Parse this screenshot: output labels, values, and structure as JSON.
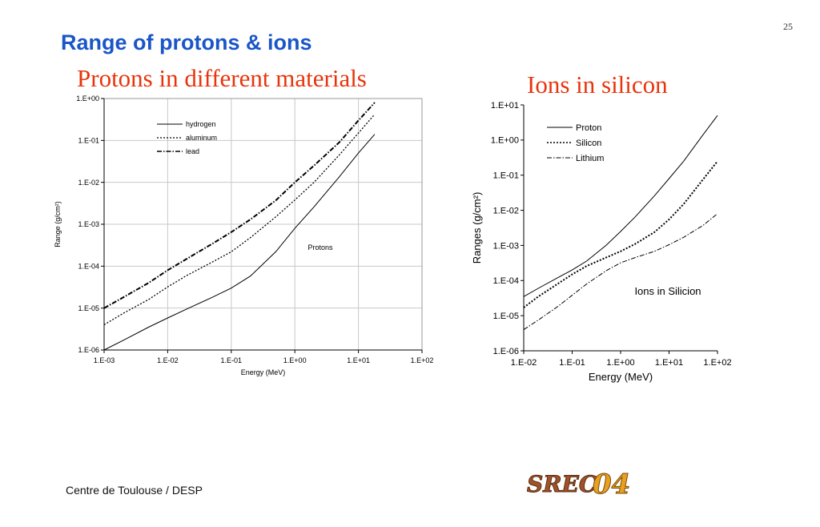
{
  "page_number": "25",
  "slide_title": "Range of protons & ions",
  "footer": "Centre de Toulouse / DESP",
  "logo_text": "SREC04",
  "colors": {
    "title": "#1a56c8",
    "heading": "#e8340c",
    "grid": "#c8c8c8",
    "line": "#000000"
  },
  "chart_data": [
    {
      "type": "line",
      "title": "Protons in different materials",
      "xlabel": "Energy (MeV)",
      "ylabel": "Range (g/cm²)",
      "xscale": "log",
      "yscale": "log",
      "xlim": [
        0.001,
        100
      ],
      "ylim": [
        1e-06,
        1
      ],
      "x_ticks": [
        "1.E-03",
        "1.E-02",
        "1.E-01",
        "1.E+00",
        "1.E+01",
        "1.E+02"
      ],
      "y_ticks": [
        "1.E-06",
        "1.E-05",
        "1.E-04",
        "1.E-03",
        "1.E-02",
        "1.E-01",
        "1.E+00"
      ],
      "grid": "vertical",
      "legend_position": "top-left",
      "annotation": "Protons",
      "series": [
        {
          "name": "hydrogen",
          "dash": "solid",
          "width": 1,
          "x": [
            0.001,
            0.002,
            0.005,
            0.01,
            0.02,
            0.05,
            0.1,
            0.2,
            0.5,
            1,
            2,
            5,
            10,
            18
          ],
          "y": [
            1e-06,
            1.7e-06,
            3.5e-06,
            5.8e-06,
            9.5e-06,
            1.8e-05,
            3e-05,
            5.8e-05,
            0.00022,
            0.0008,
            0.0026,
            0.0135,
            0.05,
            0.14
          ]
        },
        {
          "name": "aluminum",
          "dash": "dotted",
          "width": 1.3,
          "x": [
            0.001,
            0.002,
            0.005,
            0.01,
            0.02,
            0.05,
            0.1,
            0.2,
            0.5,
            1,
            2,
            5,
            10,
            18
          ],
          "y": [
            4e-06,
            7.5e-06,
            1.6e-05,
            3.2e-05,
            6e-05,
            0.000125,
            0.00022,
            0.00048,
            0.0015,
            0.0038,
            0.01,
            0.045,
            0.15,
            0.42
          ]
        },
        {
          "name": "lead",
          "dash": "dashdot",
          "width": 2,
          "x": [
            0.001,
            0.002,
            0.005,
            0.01,
            0.02,
            0.05,
            0.1,
            0.2,
            0.5,
            1,
            2,
            5,
            10,
            18
          ],
          "y": [
            1e-05,
            1.8e-05,
            4e-05,
            8e-05,
            0.00015,
            0.00034,
            0.00065,
            0.0013,
            0.0037,
            0.01,
            0.025,
            0.09,
            0.3,
            0.8
          ]
        }
      ]
    },
    {
      "type": "line",
      "title": "Ions in silicon",
      "xlabel": "Energy (MeV)",
      "ylabel": "Ranges (g/cm²)",
      "xscale": "log",
      "yscale": "log",
      "xlim": [
        0.01,
        100
      ],
      "ylim": [
        1e-06,
        10
      ],
      "x_ticks": [
        "1.E-02",
        "1.E-01",
        "1.E+00",
        "1.E+01",
        "1.E+02"
      ],
      "y_ticks": [
        "1.E-06",
        "1.E-05",
        "1.E-04",
        "1.E-03",
        "1.E-02",
        "1.E-01",
        "1.E+00",
        "1.E+01"
      ],
      "grid": "none",
      "legend_position": "top-right",
      "annotation": "Ions in Silicion",
      "series": [
        {
          "name": "Proton",
          "dash": "solid",
          "width": 1,
          "x": [
            0.01,
            0.02,
            0.05,
            0.1,
            0.2,
            0.5,
            1,
            2,
            5,
            10,
            20,
            50,
            100
          ],
          "y": [
            3.5e-05,
            6e-05,
            0.00012,
            0.0002,
            0.00036,
            0.001,
            0.0025,
            0.0065,
            0.026,
            0.08,
            0.25,
            1.4,
            5
          ]
        },
        {
          "name": "Silicon",
          "dash": "dotted",
          "width": 2,
          "x": [
            0.01,
            0.02,
            0.05,
            0.1,
            0.2,
            0.5,
            1,
            2,
            5,
            10,
            20,
            50,
            100
          ],
          "y": [
            1.7e-05,
            3.5e-05,
            8e-05,
            0.00015,
            0.00026,
            0.00045,
            0.00068,
            0.0011,
            0.0024,
            0.0055,
            0.015,
            0.075,
            0.25
          ]
        },
        {
          "name": "Lithium",
          "dash": "dashdot",
          "width": 1,
          "x": [
            0.01,
            0.02,
            0.05,
            0.1,
            0.2,
            0.5,
            1,
            2,
            5,
            10,
            20,
            50,
            100
          ],
          "y": [
            4e-06,
            7.5e-06,
            1.8e-05,
            3.8e-05,
            8e-05,
            0.00019,
            0.00032,
            0.00045,
            0.00068,
            0.00105,
            0.0017,
            0.0037,
            0.008
          ]
        }
      ]
    }
  ]
}
